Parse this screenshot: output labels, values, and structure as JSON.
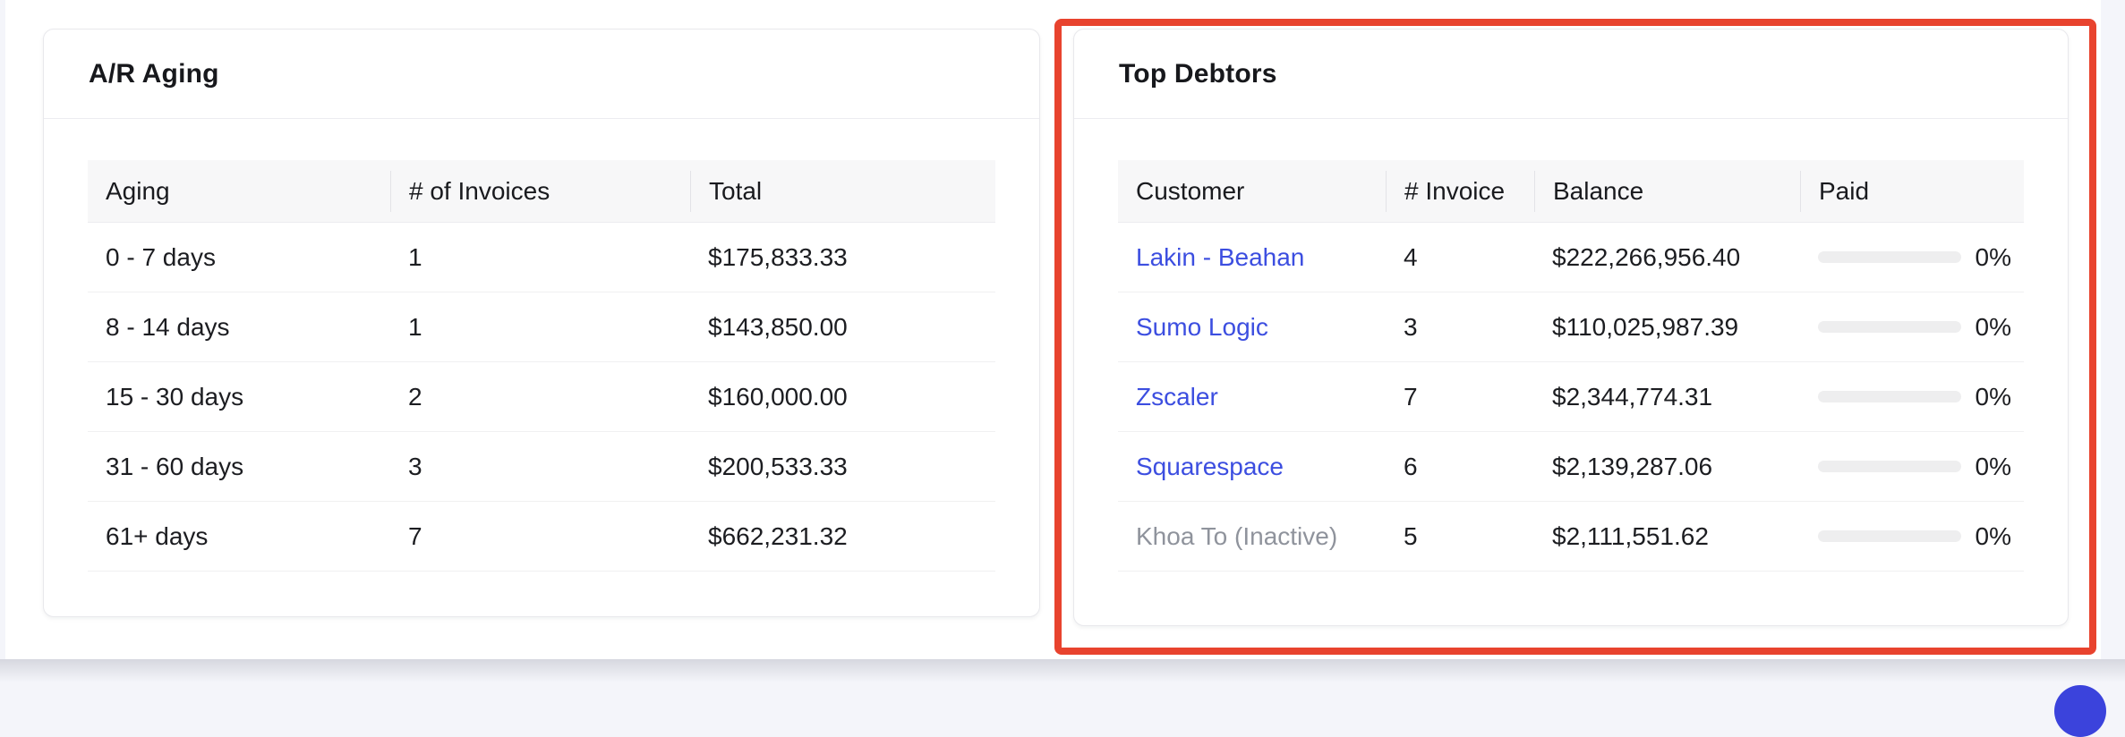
{
  "colors": {
    "page_background": "#f4f5fa",
    "card_border": "#e8e8ec",
    "table_header_background": "#f7f7f8",
    "row_divider": "#f0f0f1",
    "text_primary": "#1c1d21",
    "link_blue": "#3c4ee0",
    "muted_gray": "#8f939c",
    "highlight_red": "#e8432e",
    "fab_blue": "#3b43dc",
    "progress_track": "#eeeeef"
  },
  "ar_aging": {
    "title": "A/R Aging",
    "columns": [
      "Aging",
      "# of Invoices",
      "Total"
    ],
    "rows": [
      {
        "aging": "0 - 7 days",
        "invoices": "1",
        "total": "$175,833.33"
      },
      {
        "aging": "8 - 14 days",
        "invoices": "1",
        "total": "$143,850.00"
      },
      {
        "aging": "15 - 30 days",
        "invoices": "2",
        "total": "$160,000.00"
      },
      {
        "aging": "31 - 60 days",
        "invoices": "3",
        "total": "$200,533.33"
      },
      {
        "aging": "61+ days",
        "invoices": "7",
        "total": "$662,231.32"
      }
    ]
  },
  "top_debtors": {
    "title": "Top Debtors",
    "columns": [
      "Customer",
      "# Invoice",
      "Balance",
      "Paid"
    ],
    "rows": [
      {
        "customer": "Lakin - Beahan",
        "invoices": "4",
        "balance": "$222,266,956.40",
        "paid_percent": "0%",
        "customer_is_link": true
      },
      {
        "customer": "Sumo Logic",
        "invoices": "3",
        "balance": "$110,025,987.39",
        "paid_percent": "0%",
        "customer_is_link": true
      },
      {
        "customer": "Zscaler",
        "invoices": "7",
        "balance": "$2,344,774.31",
        "paid_percent": "0%",
        "customer_is_link": true
      },
      {
        "customer": "Squarespace",
        "invoices": "6",
        "balance": "$2,139,287.06",
        "paid_percent": "0%",
        "customer_is_link": true
      },
      {
        "customer": "Khoa To (Inactive)",
        "invoices": "5",
        "balance": "$2,111,551.62",
        "paid_percent": "0%",
        "customer_is_link": false
      }
    ]
  }
}
